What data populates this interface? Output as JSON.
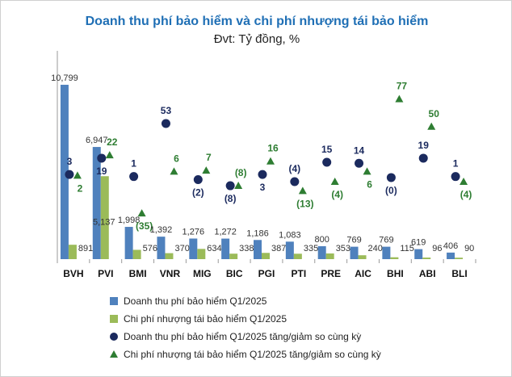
{
  "chart_data": {
    "type": "bar",
    "title": "Doanh thu phí bảo hiểm và chi phí nhượng tái bảo hiểm",
    "subtitle": "Đvt: Tỷ đồng, %",
    "categories": [
      "BVH",
      "PVI",
      "BMI",
      "VNR",
      "MIG",
      "BIC",
      "PGI",
      "PTI",
      "PRE",
      "AIC",
      "BHI",
      "ABI",
      "BLI"
    ],
    "series": [
      {
        "name": "Doanh thu phí bảo hiểm Q1/2025",
        "kind": "bar",
        "axis": "primary",
        "color": "#4f81bd",
        "values": [
          10799,
          6947,
          1998,
          1392,
          1276,
          1272,
          1186,
          1083,
          800,
          769,
          769,
          619,
          406
        ],
        "labels": [
          "10,799",
          "6,947",
          "1,998",
          "1,392",
          "1,276",
          "1,272",
          "1,186",
          "1,083",
          "800",
          "769",
          "769",
          "619",
          "406"
        ]
      },
      {
        "name": "Chi phí nhượng tái bảo hiểm  Q1/2025",
        "kind": "bar",
        "axis": "primary",
        "color": "#9bbb59",
        "values": [
          891,
          5137,
          576,
          370,
          634,
          338,
          387,
          335,
          353,
          240,
          115,
          96,
          90
        ],
        "labels": [
          "891",
          "5,137",
          "576",
          "370",
          "634",
          "338",
          "387",
          "335",
          "353",
          "240",
          "115",
          "96",
          "90"
        ]
      },
      {
        "name": "Doanh thu phí bảo hiểm Q1/2025 tăng/giảm so cùng kỳ",
        "kind": "scatter",
        "marker": "circle",
        "axis": "secondary",
        "color": "#1b2a5e",
        "values": [
          3,
          19,
          1,
          53,
          -2,
          -8,
          3,
          -4,
          15,
          14,
          0,
          19,
          1
        ],
        "labels": [
          "3",
          "19",
          "1",
          "53",
          "(2)",
          "(8)",
          "3",
          "(4)",
          "15",
          "14",
          "(0)",
          "19",
          "1"
        ]
      },
      {
        "name": "Chi phí nhượng tái bảo hiểm  Q1/2025 tăng/giảm so cùng kỳ",
        "kind": "scatter",
        "marker": "triangle",
        "axis": "secondary",
        "color": "#2e7d32",
        "values": [
          2,
          22,
          -35,
          6,
          7,
          -8,
          16,
          -13,
          -4,
          6,
          77,
          50,
          -4
        ],
        "labels": [
          "2",
          "22",
          "(35)",
          "6",
          "7",
          "(8)",
          "16",
          "(13)",
          "(4)",
          "6",
          "77",
          "50",
          "(4)"
        ]
      }
    ],
    "ylim": [
      0,
      12000
    ],
    "y2lim": [
      -80,
      110
    ],
    "grid": false,
    "legend_position": "bottom"
  }
}
